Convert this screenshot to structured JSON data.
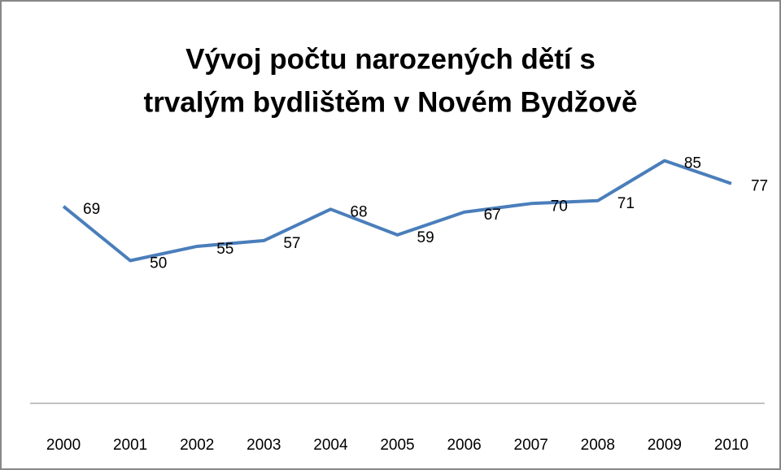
{
  "chart_data": {
    "type": "line",
    "title": [
      "Vývoj počtu narozených dětí  s",
      "trvalým bydlištěm v Novém Bydžově"
    ],
    "categories": [
      "2000",
      "2001",
      "2002",
      "2003",
      "2004",
      "2005",
      "2006",
      "2007",
      "2008",
      "2009",
      "2010"
    ],
    "values": [
      69,
      50,
      55,
      57,
      68,
      59,
      67,
      70,
      71,
      85,
      77
    ],
    "color": "#4a7ebb",
    "ylim": [
      0,
      100
    ]
  }
}
